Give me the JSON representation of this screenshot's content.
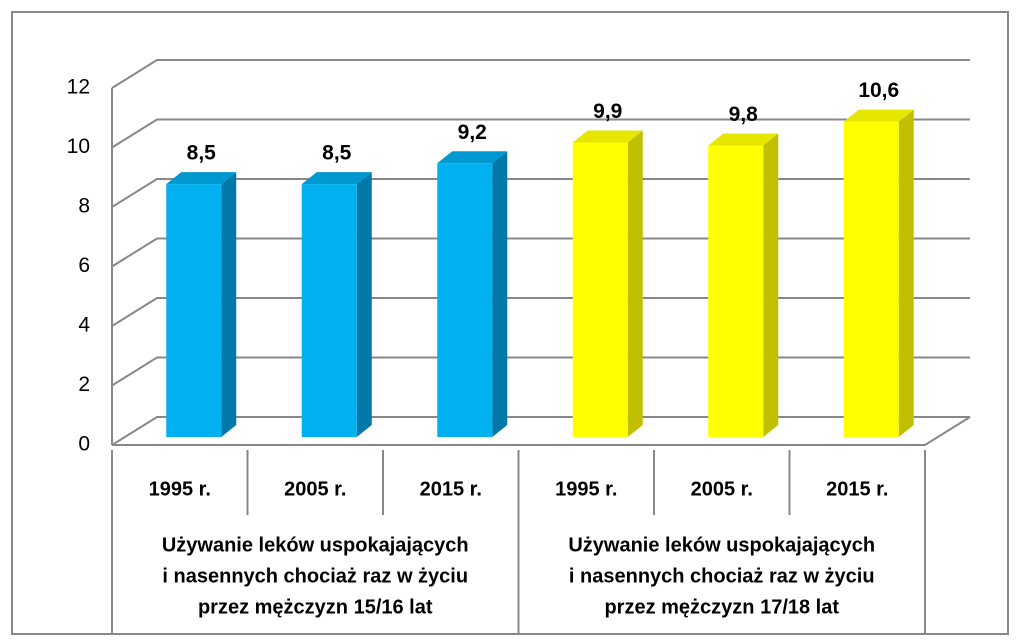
{
  "chart_data": {
    "type": "bar3d",
    "categories": [
      "1995 r.",
      "2005 r.",
      "2015 r.",
      "1995 r.",
      "2005 r.",
      "2015 r."
    ],
    "values": [
      8.5,
      8.5,
      9.2,
      9.9,
      9.8,
      10.6
    ],
    "value_labels": [
      "8,5",
      "8,5",
      "9,2",
      "9,9",
      "9,8",
      "10,6"
    ],
    "colors": [
      "#00b0f0",
      "#00b0f0",
      "#00b0f0",
      "#ffff00",
      "#ffff00",
      "#ffff00"
    ],
    "groups": [
      {
        "lines": [
          "Używanie leków uspokajających",
          "i nasennych chociaż raz w życiu",
          "przez mężczyzn 15/16 lat"
        ]
      },
      {
        "lines": [
          "Używanie leków uspokajających",
          "i nasennych chociaż raz w życiu",
          "przez mężczyzn 17/18 lat"
        ]
      }
    ],
    "ylim": [
      0,
      12
    ],
    "yticks": [
      0,
      2,
      4,
      6,
      8,
      10,
      12
    ],
    "grid": true
  }
}
